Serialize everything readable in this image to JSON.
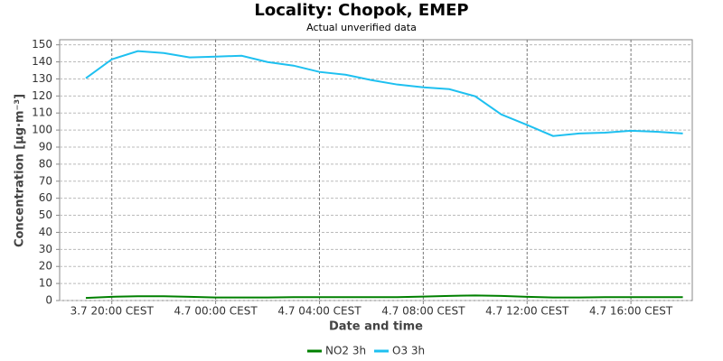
{
  "chart_data": {
    "type": "line",
    "title": "Locality: Chopok, EMEP",
    "subtitle": "Actual unverified data",
    "x_label": "Date and time",
    "y_label": "Concentration [μg·m⁻³]",
    "categories": [
      null,
      "3.7 20:00 CEST",
      null,
      null,
      null,
      "4.7 00:00 CEST",
      null,
      null,
      null,
      "4.7 04:00 CEST",
      null,
      null,
      null,
      "4.7 08:00 CEST",
      null,
      null,
      null,
      "4.7 12:00 CEST",
      null,
      null,
      null,
      "4.7 16:00 CEST",
      null,
      null
    ],
    "series": [
      {
        "name": "NO2 3h",
        "color": "#008000",
        "values": [
          1.5,
          2.2,
          2.5,
          2.5,
          2.2,
          1.8,
          1.8,
          1.8,
          2.0,
          2.0,
          2.0,
          2.0,
          2.0,
          2.3,
          2.7,
          3.0,
          2.7,
          2.2,
          1.8,
          1.8,
          2.0,
          2.0,
          2.0,
          2.0
        ]
      },
      {
        "name": "O3 3h",
        "color": "#1ec0f0",
        "values": [
          130.4,
          141.5,
          146.3,
          145.2,
          142.6,
          143.1,
          143.6,
          139.9,
          137.8,
          134.1,
          132.5,
          129.3,
          126.7,
          125.1,
          124.0,
          119.8,
          109.2,
          103,
          96.5,
          98,
          98.5,
          99.6,
          99,
          98
        ]
      }
    ],
    "ylim": [
      0,
      153
    ],
    "yticks": [
      0,
      10,
      20,
      30,
      40,
      50,
      60,
      70,
      80,
      90,
      100,
      110,
      120,
      130,
      140,
      150
    ],
    "grid": true
  }
}
